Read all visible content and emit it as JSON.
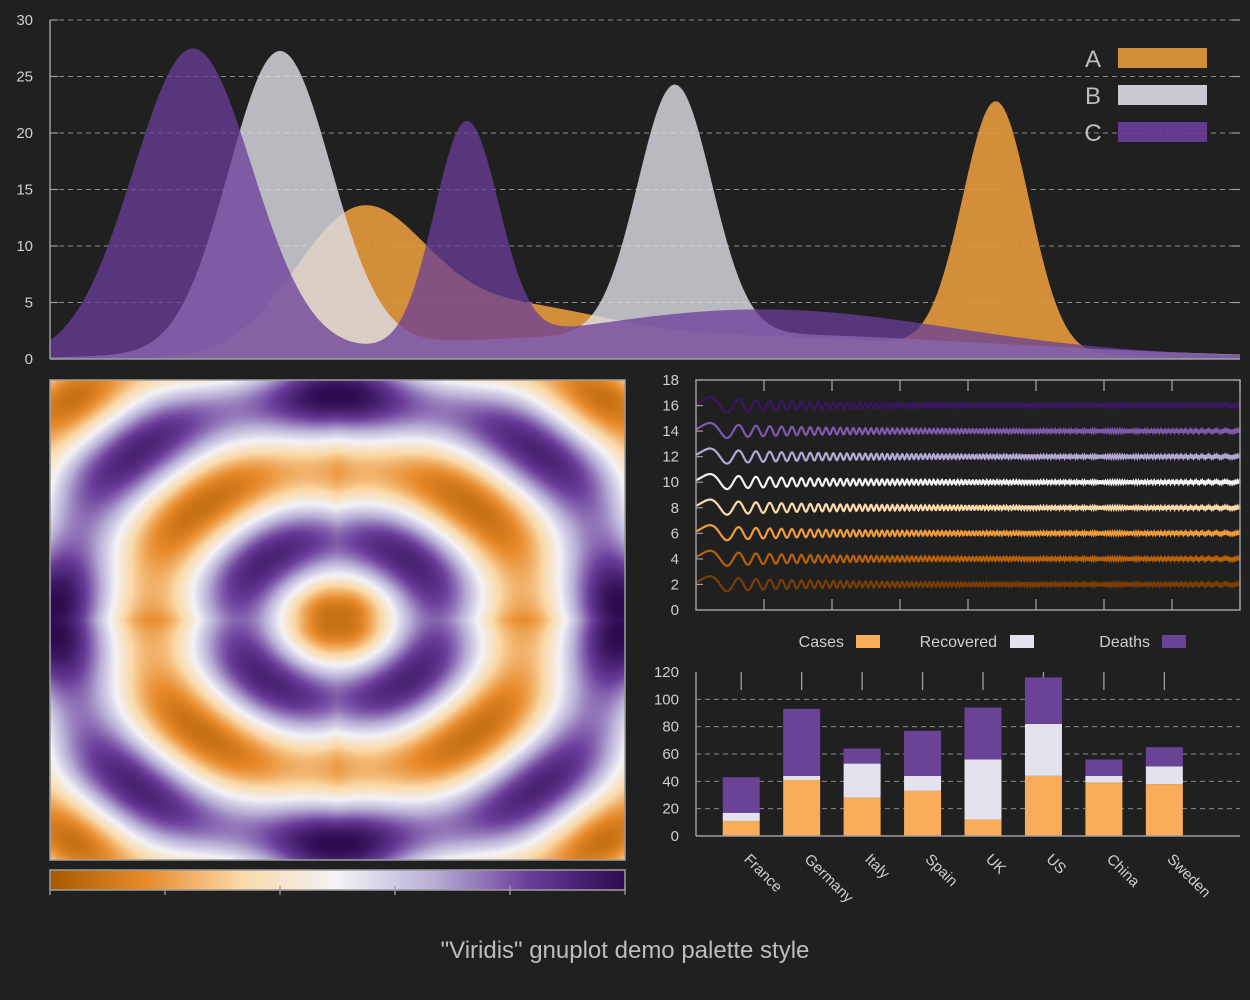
{
  "caption": "\"Viridis\" gnuplot demo palette style",
  "colors": {
    "background": "#202020",
    "axis": "#9e9e9e",
    "grid": "#8a8a8a",
    "A": "#e59a3c",
    "B": "#dcdce4",
    "C": "#6a3d9a",
    "cases": "#f9ac5a",
    "recovered": "#e4e2ec",
    "deaths": "#6b4396"
  },
  "chart_data": [
    {
      "type": "area",
      "ylim": [
        0,
        30
      ],
      "xlim": [
        0,
        10
      ],
      "yticks": [
        "0",
        "5",
        "10",
        "15",
        "20",
        "25",
        "30"
      ],
      "grid": true,
      "legend_position": "top-right",
      "series": [
        {
          "name": "A",
          "components": [
            {
              "center": 2.6,
              "height": 12.5,
              "width": 0.55
            },
            {
              "center": 3.9,
              "height": 3.5,
              "width": 0.75
            },
            {
              "center": 5.8,
              "height": 2.0,
              "width": 1.6
            },
            {
              "center": 7.95,
              "height": 22.0,
              "width": 0.28
            }
          ]
        },
        {
          "name": "B",
          "components": [
            {
              "center": 1.93,
              "height": 26.5,
              "width": 0.43
            },
            {
              "center": 5.25,
              "height": 22.0,
              "width": 0.31
            },
            {
              "center": 5.5,
              "height": 2.3,
              "width": 2.4
            }
          ]
        },
        {
          "name": "C",
          "components": [
            {
              "center": 1.2,
              "height": 27.2,
              "width": 0.5
            },
            {
              "center": 3.5,
              "height": 19.5,
              "width": 0.27
            },
            {
              "center": 6.0,
              "height": 3.7,
              "width": 1.55
            },
            {
              "center": 5.5,
              "height": 0.7,
              "width": 3.0
            }
          ]
        }
      ]
    },
    {
      "type": "heatmap",
      "description_colorbar": [
        "#a65a00",
        "#e88a2a",
        "#fbd9a8",
        "#f3f3f7",
        "#b8aed6",
        "#6a3d9a",
        "#2b0a4e"
      ],
      "colorbar_ticks": 6
    },
    {
      "type": "line",
      "ylim": [
        0,
        18
      ],
      "yticks": [
        "0",
        "2",
        "4",
        "6",
        "8",
        "10",
        "12",
        "14",
        "16",
        "18"
      ],
      "offsets": [
        2,
        4,
        6,
        8,
        10,
        12,
        14,
        16
      ],
      "line_colors": [
        "#7a3e05",
        "#b8600c",
        "#ee9b3e",
        "#fcd9a8",
        "#f3f3f5",
        "#b4a7d6",
        "#7c5aad",
        "#3c1562"
      ]
    },
    {
      "type": "bar",
      "stacked": true,
      "ylim": [
        0,
        120
      ],
      "yticks": [
        "0",
        "20",
        "40",
        "60",
        "80",
        "100",
        "120"
      ],
      "categories": [
        "France",
        "Germany",
        "Italy",
        "Spain",
        "UK",
        "US",
        "China",
        "Sweden"
      ],
      "legend_position": "top",
      "series": [
        {
          "name": "Cases",
          "values": [
            11,
            41,
            28,
            33,
            12,
            44,
            39,
            38
          ]
        },
        {
          "name": "Recovered",
          "values": [
            6,
            3,
            25,
            11,
            44,
            38,
            5,
            13
          ]
        },
        {
          "name": "Deaths",
          "values": [
            26,
            49,
            11,
            33,
            38,
            34,
            12,
            14
          ]
        }
      ]
    }
  ]
}
